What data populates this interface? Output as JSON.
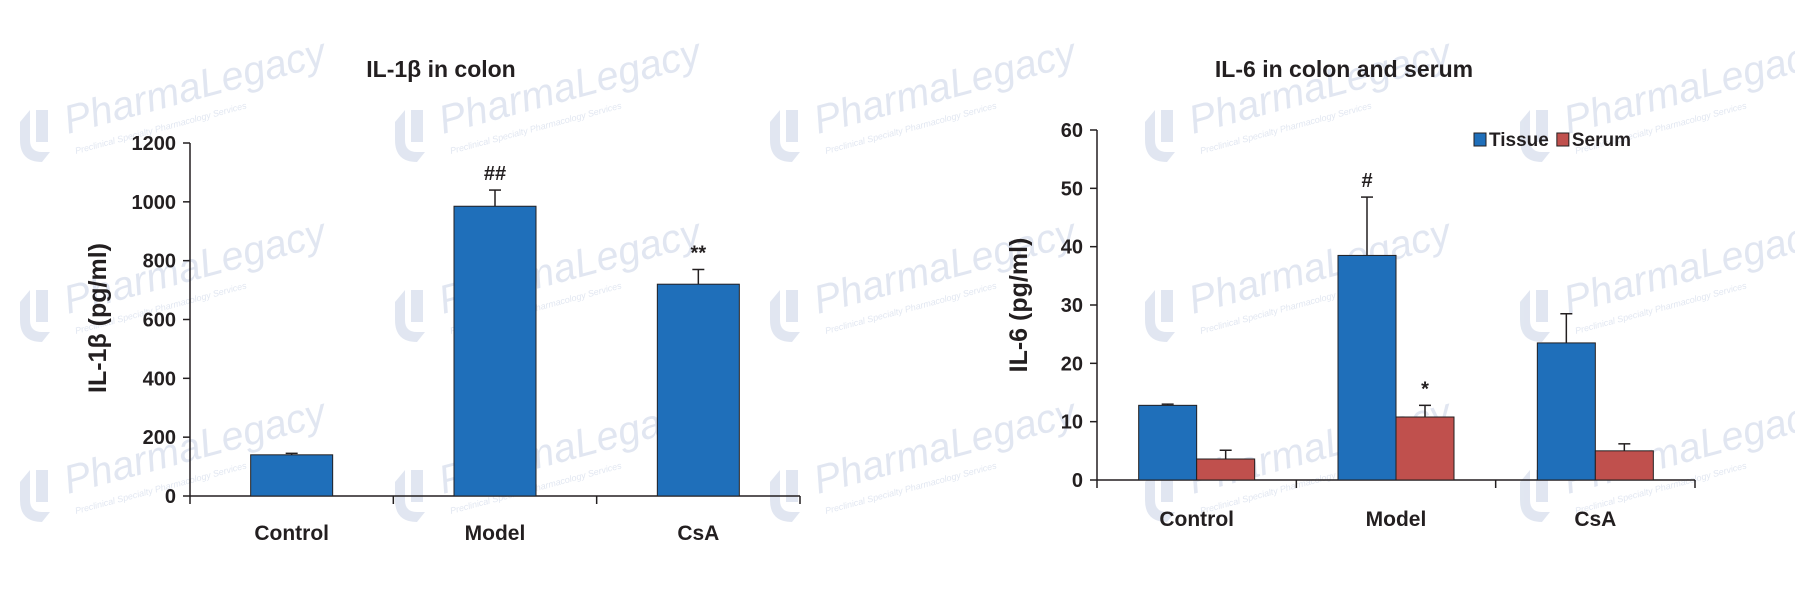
{
  "watermark": {
    "brand": "PharmaLegacy",
    "tagline": "Preclinical Specialty Pharmacology Services"
  },
  "colors": {
    "tissue": "#1f6fba",
    "serum": "#c0504d",
    "text": "#231f20",
    "axis": "#231f20",
    "watermark": "#c9d3e6"
  },
  "chart_data": [
    {
      "type": "bar",
      "title": "IL-1β in colon",
      "ylabel": "IL-1β  (pg/ml)",
      "xlabel": "",
      "categories": [
        "Control",
        "Model",
        "CsA"
      ],
      "ylim": [
        0,
        1200
      ],
      "yticks": [
        0,
        200,
        400,
        600,
        800,
        1000,
        1200
      ],
      "grid": false,
      "series": [
        {
          "name": "",
          "color": "#1f6fba",
          "values": [
            140,
            985,
            720
          ],
          "errors": [
            5,
            55,
            50
          ],
          "annotations": [
            "",
            "##",
            "**"
          ]
        }
      ]
    },
    {
      "type": "bar",
      "title": "IL-6 in colon and serum",
      "ylabel": "IL-6 (pg/ml)",
      "xlabel": "",
      "categories": [
        "Control",
        "Model",
        "CsA"
      ],
      "ylim": [
        0,
        60
      ],
      "yticks": [
        0,
        10,
        20,
        30,
        40,
        50,
        60
      ],
      "grid": false,
      "legend": "top-right",
      "series": [
        {
          "name": "Tissue",
          "color": "#1f6fba",
          "values": [
            12.8,
            38.5,
            23.5
          ],
          "errors": [
            0.2,
            10,
            5
          ],
          "annotations": [
            "",
            "#",
            ""
          ]
        },
        {
          "name": "Serum",
          "color": "#c0504d",
          "values": [
            3.6,
            10.8,
            5
          ],
          "errors": [
            1.5,
            2,
            1.2
          ],
          "annotations": [
            "",
            "*",
            ""
          ]
        }
      ]
    }
  ]
}
